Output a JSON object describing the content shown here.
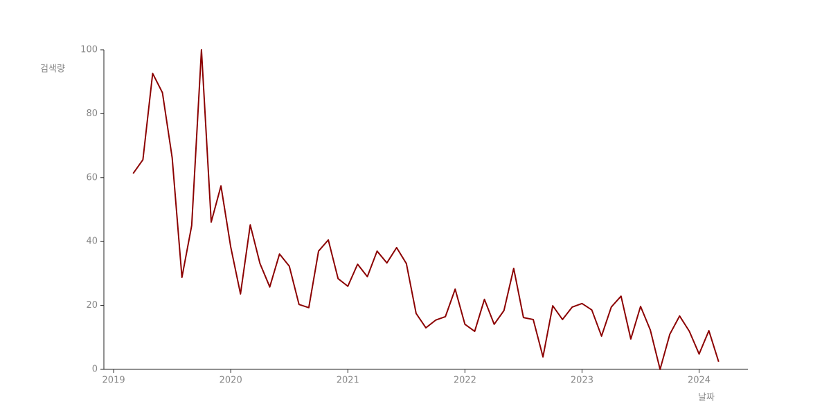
{
  "chart_data": {
    "type": "line",
    "x_label": "날짜",
    "y_label": "검색량",
    "x": [
      "2019-03",
      "2019-04",
      "2019-05",
      "2019-06",
      "2019-07",
      "2019-08",
      "2019-09",
      "2019-10",
      "2019-11",
      "2019-12",
      "2020-01",
      "2020-02",
      "2020-03",
      "2020-04",
      "2020-05",
      "2020-06",
      "2020-07",
      "2020-08",
      "2020-09",
      "2020-10",
      "2020-11",
      "2020-12",
      "2021-01",
      "2021-02",
      "2021-03",
      "2021-04",
      "2021-05",
      "2021-06",
      "2021-07",
      "2021-08",
      "2021-09",
      "2021-10",
      "2021-11",
      "2021-12",
      "2022-01",
      "2022-02",
      "2022-03",
      "2022-04",
      "2022-05",
      "2022-06",
      "2022-07",
      "2022-08",
      "2022-09",
      "2022-10",
      "2022-11",
      "2022-12",
      "2023-01",
      "2023-02",
      "2023-03",
      "2023-04",
      "2023-05",
      "2023-06",
      "2023-07",
      "2023-08",
      "2023-09",
      "2023-10",
      "2023-11",
      "2023-12",
      "2024-01",
      "2024-02",
      "2024-03"
    ],
    "series": [
      {
        "color": "#8b0000",
        "values": [
          61.3,
          65.6,
          92.6,
          86.6,
          66.2,
          28.8,
          45,
          100,
          46.1,
          57.4,
          38.3,
          23.6,
          45.2,
          33.1,
          25.8,
          36.1,
          32.3,
          20.3,
          19.3,
          37,
          40.5,
          28.4,
          26,
          32.9,
          29,
          37,
          33.3,
          38.1,
          33.1,
          17.5,
          13,
          15.4,
          16.5,
          25.1,
          14.1,
          11.9,
          21.9,
          14.1,
          18.4,
          31.6,
          16.2,
          15.6,
          3.9,
          19.9,
          15.6,
          19.5,
          20.6,
          18.6,
          10.4,
          19.5,
          22.9,
          9.5,
          19.7,
          12.3,
          0,
          11,
          16.7,
          11.9,
          4.8,
          12.1,
          2.4
        ]
      }
    ],
    "xlim": [
      "2018-12",
      "2024-06"
    ],
    "xticks": [
      {
        "value": "2019-01",
        "label": "2019"
      },
      {
        "value": "2020-01",
        "label": "2020"
      },
      {
        "value": "2021-01",
        "label": "2021"
      },
      {
        "value": "2022-01",
        "label": "2022"
      },
      {
        "value": "2023-01",
        "label": "2023"
      },
      {
        "value": "2024-01",
        "label": "2024"
      }
    ],
    "ylim": [
      0,
      100
    ],
    "yticks": [
      0,
      20,
      40,
      60,
      80,
      100
    ],
    "grid": false
  }
}
